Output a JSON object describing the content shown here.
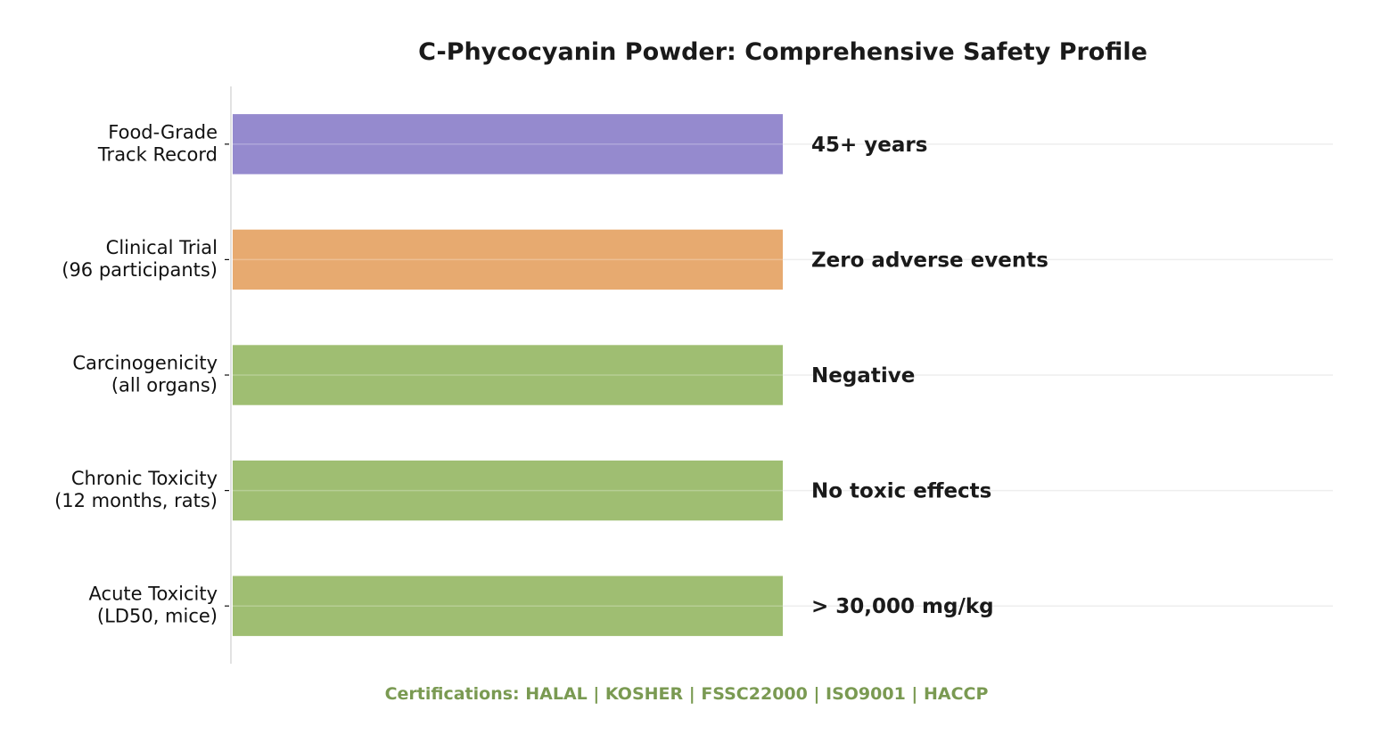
{
  "chart_data": {
    "type": "bar",
    "orientation": "horizontal",
    "title": "C-Phycocyanin Powder: Comprehensive Safety Profile",
    "categories": [
      [
        "Food-Grade",
        "Track Record"
      ],
      [
        "Clinical Trial",
        "(96 participants)"
      ],
      [
        "Carcinogenicity",
        "(all organs)"
      ],
      [
        "Chronic Toxicity",
        "(12 months, rats)"
      ],
      [
        "Acute Toxicity",
        "(LD50, mice)"
      ]
    ],
    "values": [
      1,
      1,
      1,
      1,
      1
    ],
    "value_labels": [
      "45+ years",
      "Zero adverse events",
      "Negative",
      "No toxic effects",
      "> 30,000 mg/kg"
    ],
    "bar_colors": [
      "#958ace",
      "#e7aa70",
      "#9fbe72",
      "#9fbe72",
      "#9fbe72"
    ],
    "xlim": [
      0,
      2
    ],
    "grid": true,
    "legend": "none"
  },
  "footer": {
    "text": "Certifications: HALAL | KOSHER | FSSC22000 | ISO9001 | HACCP",
    "color": "#7a9a52"
  }
}
